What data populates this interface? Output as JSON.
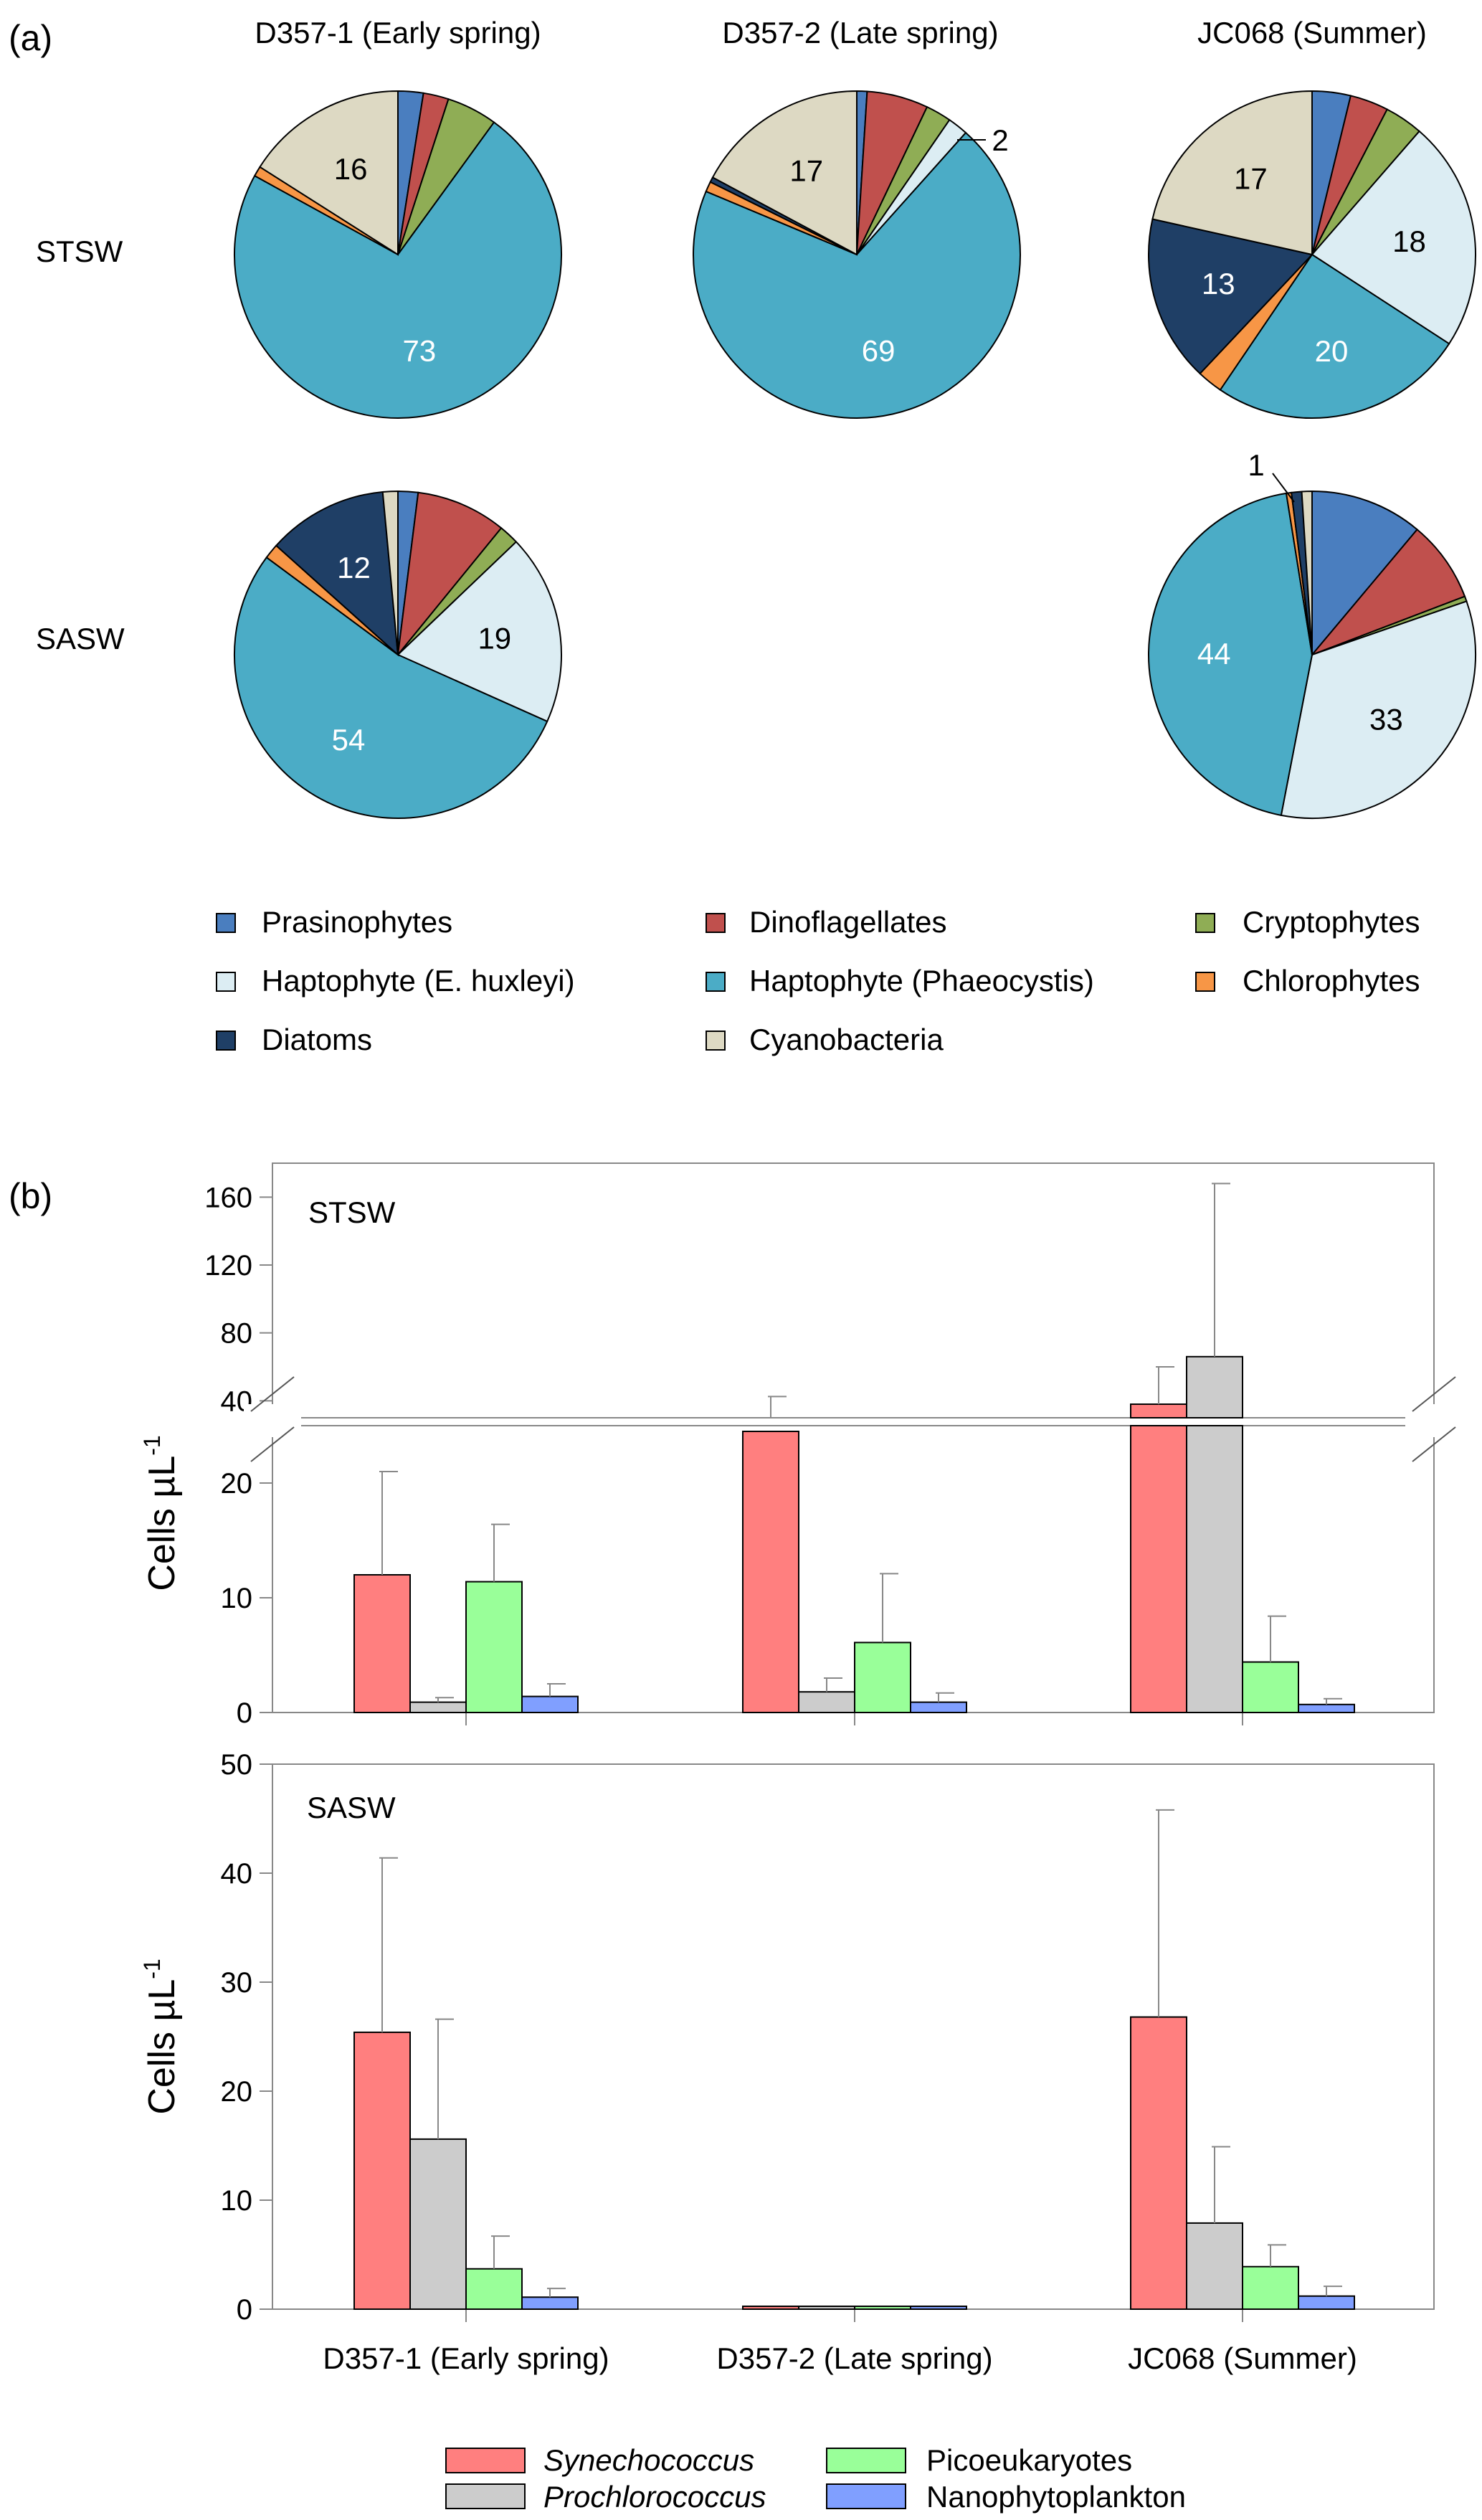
{
  "panel_a": {
    "label": "(a)",
    "column_titles": [
      "D357-1 (Early spring)",
      "D357-2 (Late spring)",
      "JC068 (Summer)"
    ],
    "row_labels": [
      "STSW",
      "SASW"
    ],
    "legend": [
      {
        "name": "Prasinophytes",
        "color": "#4a7ebf"
      },
      {
        "name": "Dinoflagellates",
        "color": "#c0504d"
      },
      {
        "name": "Cryptophytes",
        "color": "#8fad55"
      },
      {
        "name": "Haptophyte (E. huxleyi)",
        "color": "#dcedf3"
      },
      {
        "name": "Haptophyte (Phaeocystis)",
        "color": "#4bacc6"
      },
      {
        "name": "Chlorophytes",
        "color": "#f79646"
      },
      {
        "name": "Diatoms",
        "color": "#1f3f66"
      },
      {
        "name": "Cyanobacteria",
        "color": "#ddd9c3"
      }
    ]
  },
  "panel_b": {
    "label": "(b)",
    "ylabel": "Cells µL",
    "ylabel_sup": "-1",
    "categories": [
      "D357-1 (Early spring)",
      "D357-2 (Late spring)",
      "JC068 (Summer)"
    ],
    "legend": [
      {
        "name": "Synechococcus",
        "color": "#ff7f7f",
        "italic": true
      },
      {
        "name": "Prochlorococcus",
        "color": "#cccccc",
        "italic": true
      },
      {
        "name": "Picoeukaryotes",
        "color": "#99ff99",
        "italic": false
      },
      {
        "name": "Nanophytoplankton",
        "color": "#809fff",
        "italic": false
      }
    ]
  },
  "chart_data": [
    {
      "type": "pie",
      "title": "D357-1 (Early spring)",
      "row": "STSW",
      "labels": [
        "Prasinophytes",
        "Dinoflagellates",
        "Cryptophytes",
        "Haptophyte (E. huxleyi)",
        "Haptophyte (Phaeocystis)",
        "Chlorophytes",
        "Diatoms",
        "Cyanobacteria"
      ],
      "values": [
        2.5,
        2.5,
        5,
        0,
        73,
        1,
        0,
        16
      ],
      "data_labels": [
        "",
        "",
        "",
        "",
        "73",
        "",
        "",
        "16"
      ]
    },
    {
      "type": "pie",
      "title": "D357-2 (Late spring)",
      "row": "STSW",
      "labels": [
        "Prasinophytes",
        "Dinoflagellates",
        "Cryptophytes",
        "Haptophyte (E. huxleyi)",
        "Haptophyte (Phaeocystis)",
        "Chlorophytes",
        "Diatoms",
        "Cyanobacteria"
      ],
      "values": [
        1,
        6,
        2.5,
        2,
        69,
        1,
        0.5,
        17
      ],
      "data_labels": [
        "",
        "",
        "",
        "2",
        "69",
        "",
        "",
        "17"
      ]
    },
    {
      "type": "pie",
      "title": "JC068 (Summer)",
      "row": "STSW",
      "labels": [
        "Prasinophytes",
        "Dinoflagellates",
        "Cryptophytes",
        "Haptophyte (E. huxleyi)",
        "Haptophyte (Phaeocystis)",
        "Chlorophytes",
        "Diatoms",
        "Cyanobacteria"
      ],
      "values": [
        3,
        3,
        3,
        18,
        20,
        2,
        13,
        17
      ],
      "data_labels": [
        "",
        "",
        "",
        "18",
        "20",
        "",
        "13",
        "17"
      ]
    },
    {
      "type": "pie",
      "title": "D357-1 (Early spring)",
      "row": "SASW",
      "labels": [
        "Prasinophytes",
        "Dinoflagellates",
        "Cryptophytes",
        "Haptophyte (E. huxleyi)",
        "Haptophyte (Phaeocystis)",
        "Chlorophytes",
        "Diatoms",
        "Cyanobacteria"
      ],
      "values": [
        2,
        9,
        2,
        19,
        54,
        1.5,
        12,
        1.5
      ],
      "data_labels": [
        "",
        "",
        "",
        "19",
        "54",
        "",
        "12",
        ""
      ]
    },
    {
      "type": "pie",
      "title": "JC068 (Summer)",
      "row": "SASW",
      "labels": [
        "Prasinophytes",
        "Dinoflagellates",
        "Cryptophytes",
        "Haptophyte (E. huxleyi)",
        "Haptophyte (Phaeocystis)",
        "Chlorophytes",
        "Diatoms",
        "Cyanobacteria"
      ],
      "values": [
        11,
        8,
        0.5,
        33,
        44,
        0.5,
        1,
        1
      ],
      "data_labels": [
        "",
        "",
        "",
        "33",
        "44",
        "",
        "1",
        ""
      ]
    },
    {
      "type": "bar",
      "title": "STSW",
      "categories": [
        "D357-1 (Early spring)",
        "D357-2 (Late spring)",
        "JC068 (Summer)"
      ],
      "y_axis_break": [
        25,
        30
      ],
      "yticks_lower": [
        0,
        10,
        20
      ],
      "yticks_upper": [
        40,
        80,
        120,
        160
      ],
      "ylim_lower": [
        0,
        25
      ],
      "ylim_upper": [
        30,
        180
      ],
      "series": [
        {
          "name": "Synechococcus",
          "values": [
            12,
            24.5,
            38
          ],
          "errors": [
            9,
            18,
            22
          ]
        },
        {
          "name": "Prochlorococcus",
          "values": [
            0.9,
            1.8,
            66
          ],
          "errors": [
            0.4,
            1.2,
            102
          ]
        },
        {
          "name": "Picoeukaryotes",
          "values": [
            11.4,
            6.1,
            4.4
          ],
          "errors": [
            5,
            6,
            4
          ]
        },
        {
          "name": "Nanophytoplankton",
          "values": [
            1.4,
            0.9,
            0.7
          ],
          "errors": [
            1.1,
            0.8,
            0.5
          ]
        }
      ]
    },
    {
      "type": "bar",
      "title": "SASW",
      "categories": [
        "D357-1 (Early spring)",
        "D357-2 (Late spring)",
        "JC068 (Summer)"
      ],
      "ylim": [
        0,
        50
      ],
      "yticks": [
        0,
        10,
        20,
        30,
        40,
        50
      ],
      "series": [
        {
          "name": "Synechococcus",
          "values": [
            25.4,
            0.2,
            26.8
          ],
          "errors": [
            16,
            0,
            19
          ]
        },
        {
          "name": "Prochlorococcus",
          "values": [
            15.6,
            0.2,
            7.9
          ],
          "errors": [
            11,
            0,
            7
          ]
        },
        {
          "name": "Picoeukaryotes",
          "values": [
            3.7,
            0.2,
            3.9
          ],
          "errors": [
            3,
            0,
            2
          ]
        },
        {
          "name": "Nanophytoplankton",
          "values": [
            1.1,
            0.2,
            1.2
          ],
          "errors": [
            0.8,
            0,
            0.9
          ]
        }
      ]
    }
  ]
}
